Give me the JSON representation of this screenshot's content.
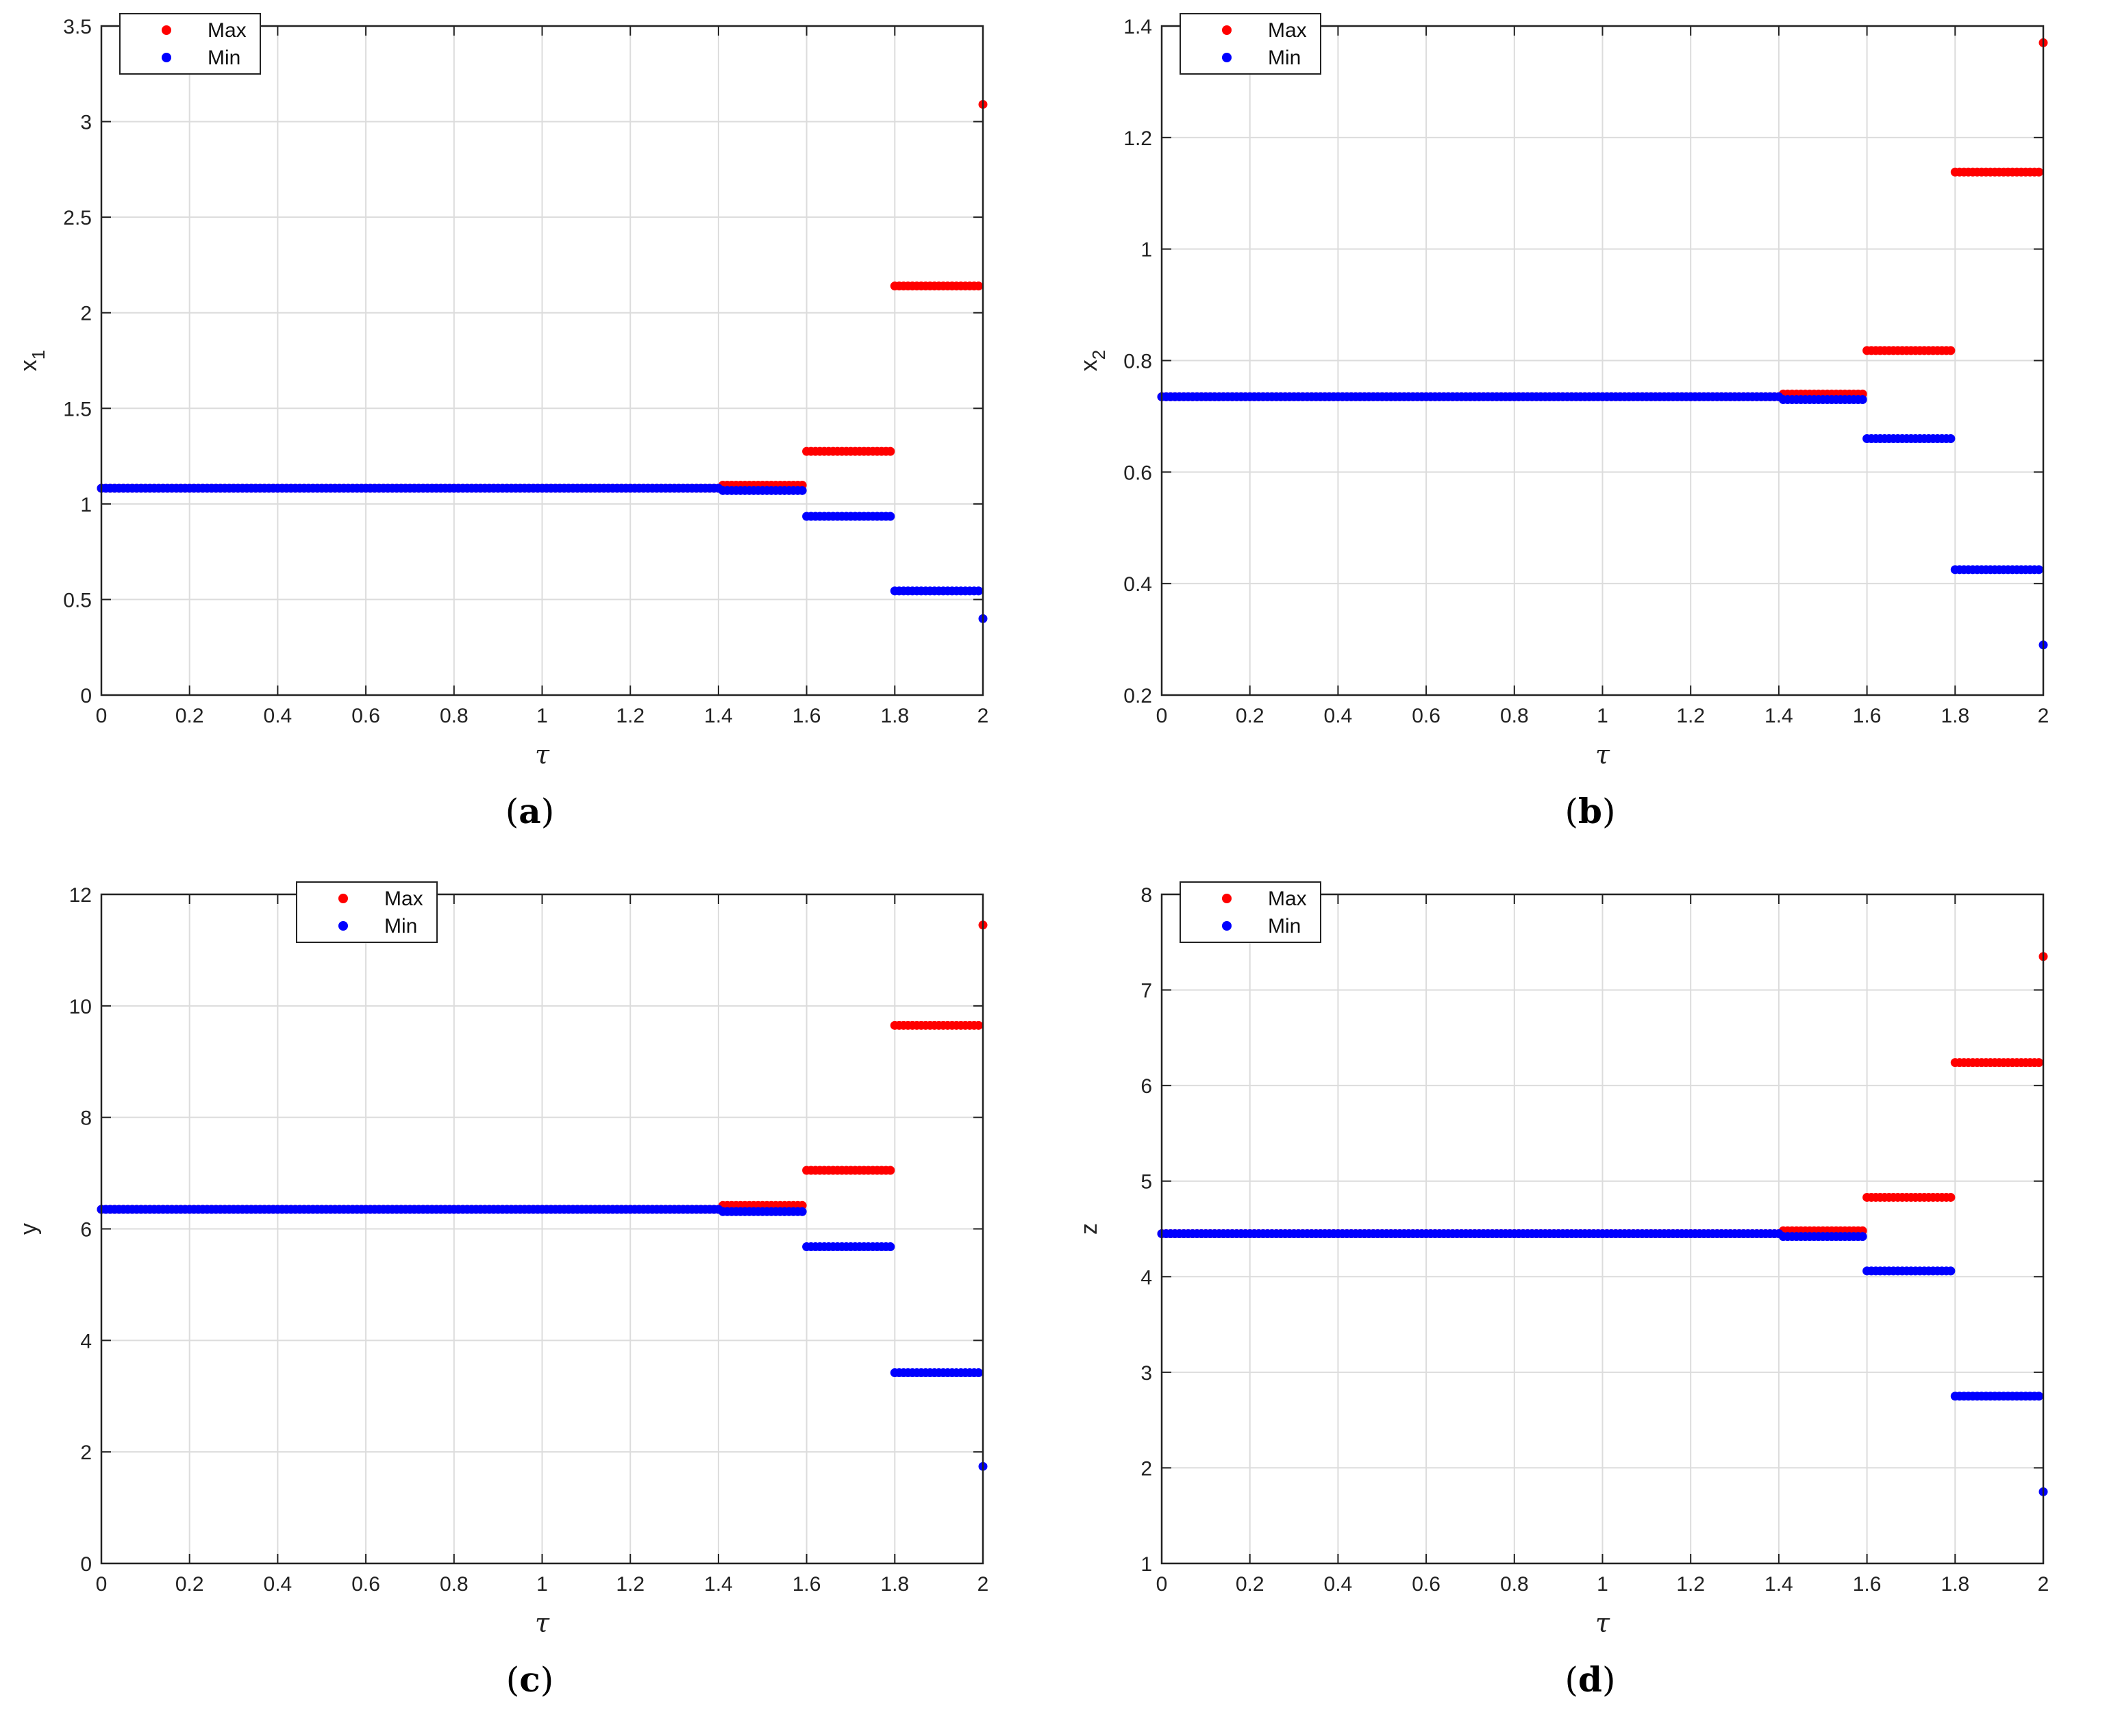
{
  "chart_data": [
    {
      "id": "a",
      "type": "scatter",
      "panel_label": "a",
      "xlabel": "τ",
      "ylabel": "x",
      "ylabel_sub": "1",
      "xlim": [
        0,
        2
      ],
      "ylim": [
        0,
        3.5
      ],
      "xticks": [
        "0",
        "0.2",
        "0.4",
        "0.6",
        "0.8",
        "1",
        "1.2",
        "1.4",
        "1.6",
        "1.8",
        "2"
      ],
      "yticks": [
        "0",
        "0.5",
        "1",
        "1.5",
        "2",
        "2.5",
        "3",
        "3.5"
      ],
      "grid": true,
      "legend_position": "top-left",
      "series": [
        {
          "name": "Max",
          "color": "#ff0000",
          "segments": [
            {
              "x": [
                0,
                1.4
              ],
              "y": 1.082
            },
            {
              "x": [
                1.41,
                1.59
              ],
              "y": 1.098
            },
            {
              "x": [
                1.6,
                1.79
              ],
              "y": 1.275
            },
            {
              "x": [
                1.8,
                1.99
              ],
              "y": 2.14
            }
          ],
          "points": [
            {
              "x": 2,
              "y": 3.09
            }
          ]
        },
        {
          "name": "Min",
          "color": "#0000ff",
          "segments": [
            {
              "x": [
                0,
                1.4
              ],
              "y": 1.082
            },
            {
              "x": [
                1.41,
                1.59
              ],
              "y": 1.07
            },
            {
              "x": [
                1.6,
                1.79
              ],
              "y": 0.935
            },
            {
              "x": [
                1.8,
                1.99
              ],
              "y": 0.545
            }
          ],
          "points": [
            {
              "x": 2,
              "y": 0.4
            }
          ]
        }
      ]
    },
    {
      "id": "b",
      "type": "scatter",
      "panel_label": "b",
      "xlabel": "τ",
      "ylabel": "x",
      "ylabel_sub": "2",
      "xlim": [
        0,
        2
      ],
      "ylim": [
        0.2,
        1.4
      ],
      "xticks": [
        "0",
        "0.2",
        "0.4",
        "0.6",
        "0.8",
        "1",
        "1.2",
        "1.4",
        "1.6",
        "1.8",
        "2"
      ],
      "yticks": [
        "0.2",
        "0.4",
        "0.6",
        "0.8",
        "1",
        "1.2",
        "1.4"
      ],
      "grid": true,
      "legend_position": "top-left",
      "series": [
        {
          "name": "Max",
          "color": "#ff0000",
          "segments": [
            {
              "x": [
                0,
                1.4
              ],
              "y": 0.735
            },
            {
              "x": [
                1.41,
                1.59
              ],
              "y": 0.74
            },
            {
              "x": [
                1.6,
                1.79
              ],
              "y": 0.818
            },
            {
              "x": [
                1.8,
                1.99
              ],
              "y": 1.138
            }
          ],
          "points": [
            {
              "x": 2,
              "y": 1.37
            }
          ]
        },
        {
          "name": "Min",
          "color": "#0000ff",
          "segments": [
            {
              "x": [
                0,
                1.4
              ],
              "y": 0.735
            },
            {
              "x": [
                1.41,
                1.59
              ],
              "y": 0.73
            },
            {
              "x": [
                1.6,
                1.79
              ],
              "y": 0.66
            },
            {
              "x": [
                1.8,
                1.99
              ],
              "y": 0.425
            }
          ],
          "points": [
            {
              "x": 2,
              "y": 0.29
            }
          ]
        }
      ]
    },
    {
      "id": "c",
      "type": "scatter",
      "panel_label": "c",
      "xlabel": "τ",
      "ylabel": "y",
      "ylabel_sub": "",
      "xlim": [
        0,
        2
      ],
      "ylim": [
        0,
        12
      ],
      "xticks": [
        "0",
        "0.2",
        "0.4",
        "0.6",
        "0.8",
        "1",
        "1.2",
        "1.4",
        "1.6",
        "1.8",
        "2"
      ],
      "yticks": [
        "0",
        "2",
        "4",
        "6",
        "8",
        "10",
        "12"
      ],
      "grid": true,
      "legend_position": "top-center",
      "series": [
        {
          "name": "Max",
          "color": "#ff0000",
          "segments": [
            {
              "x": [
                0,
                1.4
              ],
              "y": 6.35
            },
            {
              "x": [
                1.41,
                1.59
              ],
              "y": 6.42
            },
            {
              "x": [
                1.6,
                1.79
              ],
              "y": 7.05
            },
            {
              "x": [
                1.8,
                1.99
              ],
              "y": 9.65
            }
          ],
          "points": [
            {
              "x": 2,
              "y": 11.45
            }
          ]
        },
        {
          "name": "Min",
          "color": "#0000ff",
          "segments": [
            {
              "x": [
                0,
                1.4
              ],
              "y": 6.35
            },
            {
              "x": [
                1.41,
                1.59
              ],
              "y": 6.31
            },
            {
              "x": [
                1.6,
                1.79
              ],
              "y": 5.68
            },
            {
              "x": [
                1.8,
                1.99
              ],
              "y": 3.42
            }
          ],
          "points": [
            {
              "x": 2,
              "y": 1.74
            }
          ]
        }
      ]
    },
    {
      "id": "d",
      "type": "scatter",
      "panel_label": "d",
      "xlabel": "τ",
      "ylabel": "z",
      "ylabel_sub": "",
      "xlim": [
        0,
        2
      ],
      "ylim": [
        1,
        8
      ],
      "xticks": [
        "0",
        "0.2",
        "0.4",
        "0.6",
        "0.8",
        "1",
        "1.2",
        "1.4",
        "1.6",
        "1.8",
        "2"
      ],
      "yticks": [
        "1",
        "2",
        "3",
        "4",
        "5",
        "6",
        "7",
        "8"
      ],
      "grid": true,
      "legend_position": "top-left",
      "series": [
        {
          "name": "Max",
          "color": "#ff0000",
          "segments": [
            {
              "x": [
                0,
                1.4
              ],
              "y": 4.45
            },
            {
              "x": [
                1.41,
                1.59
              ],
              "y": 4.48
            },
            {
              "x": [
                1.6,
                1.79
              ],
              "y": 4.83
            },
            {
              "x": [
                1.8,
                1.99
              ],
              "y": 6.24
            }
          ],
          "points": [
            {
              "x": 2,
              "y": 7.35
            }
          ]
        },
        {
          "name": "Min",
          "color": "#0000ff",
          "segments": [
            {
              "x": [
                0,
                1.4
              ],
              "y": 4.45
            },
            {
              "x": [
                1.41,
                1.59
              ],
              "y": 4.42
            },
            {
              "x": [
                1.6,
                1.79
              ],
              "y": 4.06
            },
            {
              "x": [
                1.8,
                1.99
              ],
              "y": 2.75
            }
          ],
          "points": [
            {
              "x": 2,
              "y": 1.75
            }
          ]
        }
      ]
    }
  ]
}
